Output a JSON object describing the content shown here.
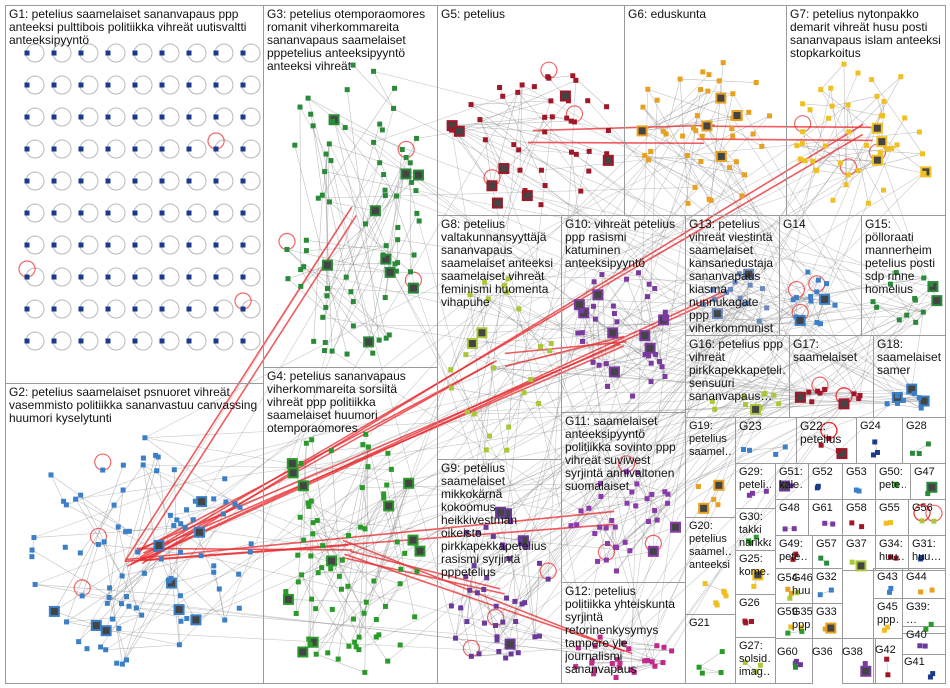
{
  "colors": {
    "edge": "#8a8a8a",
    "strong_edge": "#e8262a",
    "self_loop": "#e8262a",
    "border": "#9a9a9a",
    "groups": [
      "#1a3a8c",
      "#3a7fc8",
      "#2a8a3a",
      "#2a9a2a",
      "#a01828",
      "#e8a020",
      "#f0c020",
      "#a8c838",
      "#6a3a9a",
      "#7a3aa0",
      "#8a3aaa",
      "#c02a8a",
      "#6a8abf"
    ]
  },
  "groups": [
    {
      "id": "G1",
      "label": "G1: petelius saamelaiset sananvapaus ppp anteeksi pulttibois politiikka vihreät uutisvaltti anteeksipyyntö"
    },
    {
      "id": "G2",
      "label": "G2: petelius saamelaiset psnuoret vihreät vasemmisto politiikka sananvastuu canvassing huumori kyselytunti"
    },
    {
      "id": "G3",
      "label": "G3: petelius otemporaomores romanit viherkommareita sananvapaus saamelaiset pppetelius anteeksipyyntö anteeksi vihreät"
    },
    {
      "id": "G4",
      "label": "G4: petelius sananvapaus viherkommareita sorsiitä vihreät ppp politiikka saamelaiset huumori otemporaomores"
    },
    {
      "id": "G5",
      "label": "G5: petelius"
    },
    {
      "id": "G6",
      "label": "G6: eduskunta"
    },
    {
      "id": "G7",
      "label": "G7: petelius nytonpakko demarit vihreät husu posti sananvapaus islam anteeksi stopkarkoitus"
    },
    {
      "id": "G8",
      "label": "G8: petelius valtakunnansyyttäjä sananvapaus saamelaiset anteeksi saamelaiset vihreät feminismi huomenta vihapuhe"
    },
    {
      "id": "G9",
      "label": "G9: petelius saamelaiset mikkokärnä kokoomus heikkivestman oikeisto pirkkapekkapetelius rasismi syrjintä pppetelius"
    },
    {
      "id": "G10",
      "label": "G10: vihreät petelius ppp rasismi katuminen anteeksipyyntö"
    },
    {
      "id": "G11",
      "label": "G11: saamelaiset anteeksipyyntö politiikka sovinto ppp vihreät suviwest syrjintä annivaltonen suomalaiset"
    },
    {
      "id": "G12",
      "label": "G12: petelius politiikka yhteiskunta syrjintä retorinenkysymys tampere yle journalismi sananvapaus"
    },
    {
      "id": "G13",
      "label": "G13: petelius vihreät viestintä saamelaiset kansanedustaja sananvapaus kiasma nunnukagate ppp viherkommunist"
    },
    {
      "id": "G14",
      "label": "G14"
    },
    {
      "id": "G15",
      "label": "G15: pölloraati mannerheim petelius posti sdp rinne homelius"
    },
    {
      "id": "G16",
      "label": "G16: petelius ppp vihreät pirkkapekkapeteli… sensuuri sananvapaus…"
    },
    {
      "id": "G17",
      "label": "G17: saamelaiset"
    },
    {
      "id": "G18",
      "label": "G18: saamelaiset samer"
    },
    {
      "id": "G19",
      "label": "G19: petelius saamel…"
    },
    {
      "id": "G20",
      "label": "G20: petelius saamel… anteeksi"
    },
    {
      "id": "G21",
      "label": "G21"
    },
    {
      "id": "G22",
      "label": "G22: petelius"
    },
    {
      "id": "G23",
      "label": "G23"
    },
    {
      "id": "G24",
      "label": "G24"
    },
    {
      "id": "G25",
      "label": "G25: kome…"
    },
    {
      "id": "G26",
      "label": "G26"
    },
    {
      "id": "G27",
      "label": "G27: solsid… imag…"
    },
    {
      "id": "G28",
      "label": "G28"
    },
    {
      "id": "G29",
      "label": "G29: peteli…"
    },
    {
      "id": "G30",
      "label": "G30: takki narikka"
    },
    {
      "id": "G31",
      "label": "G31: huu…"
    },
    {
      "id": "G32",
      "label": "G32"
    },
    {
      "id": "G33",
      "label": "G33"
    },
    {
      "id": "G34",
      "label": "G34: huu…"
    },
    {
      "id": "G35",
      "label": "G35: ppp…"
    },
    {
      "id": "G36",
      "label": "G36"
    },
    {
      "id": "G37",
      "label": "G37"
    },
    {
      "id": "G38",
      "label": "G38"
    },
    {
      "id": "G39",
      "label": "G39: …"
    },
    {
      "id": "G40",
      "label": "G40"
    },
    {
      "id": "G41",
      "label": "G41"
    },
    {
      "id": "G42",
      "label": "G42"
    },
    {
      "id": "G43",
      "label": "G43"
    },
    {
      "id": "G44",
      "label": "G44"
    },
    {
      "id": "G45",
      "label": "G45: ppp…"
    },
    {
      "id": "G46",
      "label": "G46: huu…"
    },
    {
      "id": "G47",
      "label": "G47"
    },
    {
      "id": "G48",
      "label": "G48"
    },
    {
      "id": "G49",
      "label": "G49: pete…"
    },
    {
      "id": "G50",
      "label": "G50: pete…"
    },
    {
      "id": "G51",
      "label": "G51: kale…"
    },
    {
      "id": "G52",
      "label": "G52"
    },
    {
      "id": "G53",
      "label": "G53"
    },
    {
      "id": "G54",
      "label": "G54"
    },
    {
      "id": "G55",
      "label": "G55"
    },
    {
      "id": "G56",
      "label": "G56"
    },
    {
      "id": "G57",
      "label": "G57"
    },
    {
      "id": "G58",
      "label": "G58"
    },
    {
      "id": "G59",
      "label": "G59"
    },
    {
      "id": "G60",
      "label": "G60"
    },
    {
      "id": "G61",
      "label": "G61"
    }
  ]
}
